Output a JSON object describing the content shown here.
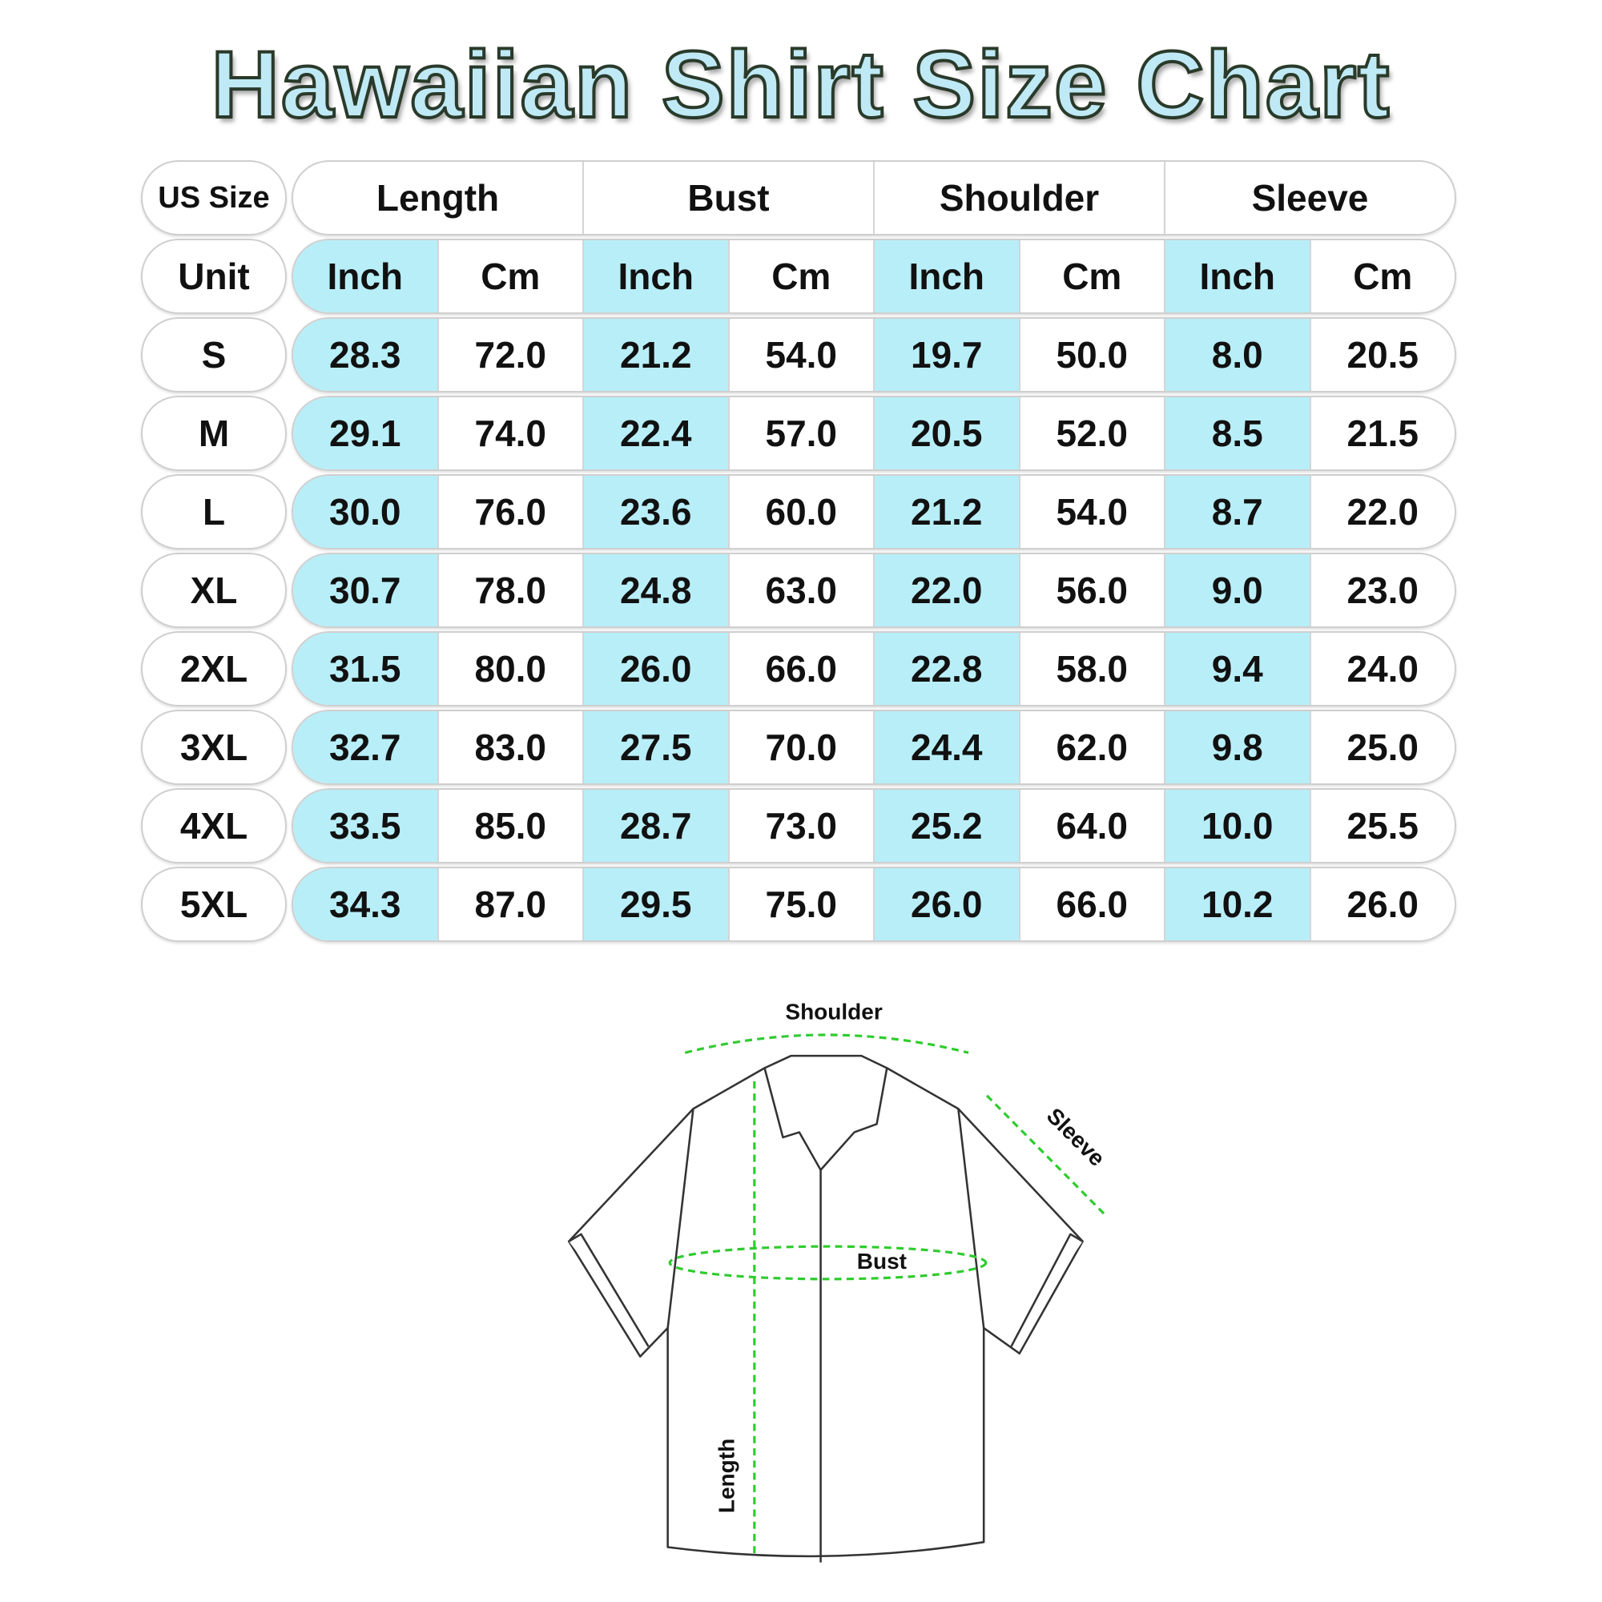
{
  "title": "Hawaiian Shirt Size Chart",
  "table": {
    "corner_label": "US Size",
    "unit_label": "Unit",
    "groups": [
      "Length",
      "Bust",
      "Shoulder",
      "Sleeve"
    ],
    "units": [
      "Inch",
      "Cm",
      "Inch",
      "Cm",
      "Inch",
      "Cm",
      "Inch",
      "Cm"
    ],
    "rows": [
      {
        "size": "S",
        "values": [
          "28.3",
          "72.0",
          "21.2",
          "54.0",
          "19.7",
          "50.0",
          "8.0",
          "20.5"
        ]
      },
      {
        "size": "M",
        "values": [
          "29.1",
          "74.0",
          "22.4",
          "57.0",
          "20.5",
          "52.0",
          "8.5",
          "21.5"
        ]
      },
      {
        "size": "L",
        "values": [
          "30.0",
          "76.0",
          "23.6",
          "60.0",
          "21.2",
          "54.0",
          "8.7",
          "22.0"
        ]
      },
      {
        "size": "XL",
        "values": [
          "30.7",
          "78.0",
          "24.8",
          "63.0",
          "22.0",
          "56.0",
          "9.0",
          "23.0"
        ]
      },
      {
        "size": "2XL",
        "values": [
          "31.5",
          "80.0",
          "26.0",
          "66.0",
          "22.8",
          "58.0",
          "9.4",
          "24.0"
        ]
      },
      {
        "size": "3XL",
        "values": [
          "32.7",
          "83.0",
          "27.5",
          "70.0",
          "24.4",
          "62.0",
          "9.8",
          "25.0"
        ]
      },
      {
        "size": "4XL",
        "values": [
          "33.5",
          "85.0",
          "28.7",
          "73.0",
          "25.2",
          "64.0",
          "10.0",
          "25.5"
        ]
      },
      {
        "size": "5XL",
        "values": [
          "34.3",
          "87.0",
          "29.5",
          "75.0",
          "26.0",
          "66.0",
          "10.2",
          "26.0"
        ]
      }
    ],
    "inch_color": "#b8eef8"
  },
  "diagram": {
    "shoulder": "Shoulder",
    "sleeve": "Sleeve",
    "bust": "Bust",
    "length": "Length",
    "measure_color": "#2ecc2e"
  }
}
